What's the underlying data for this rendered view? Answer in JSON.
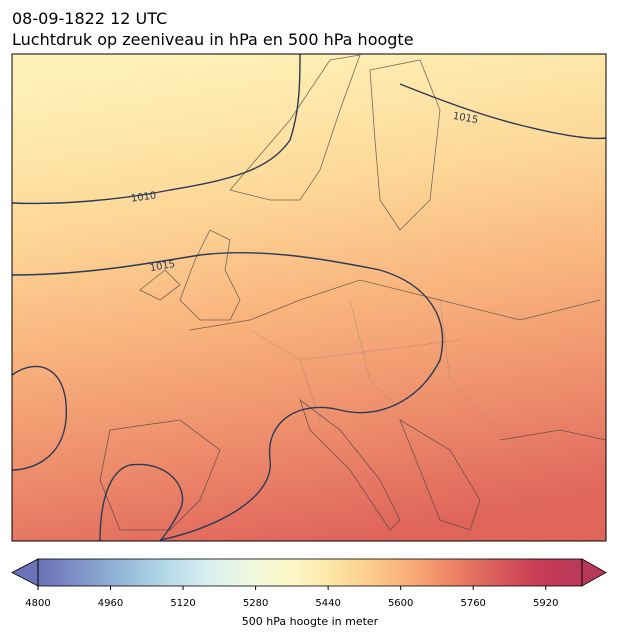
{
  "header": {
    "title_lines": [
      "08-09-1822 12 UTC",
      "Luchtdruk op zeeniveau in hPa en 500 hPa hoogte"
    ]
  },
  "map": {
    "isobar_labels": [
      "1010",
      "1015",
      "1015"
    ]
  },
  "colorbar": {
    "range": [
      4800,
      6000
    ],
    "ticks": [
      4800,
      4960,
      5120,
      5280,
      5440,
      5600,
      5760,
      5920
    ],
    "label": "500 hPa hoogte in meter",
    "colors": [
      "#6a72b8",
      "#7f93c6",
      "#94b8d8",
      "#b3d8e8",
      "#d6eef2",
      "#eef8e0",
      "#fdf8c8",
      "#fde6a6",
      "#fdcb8a",
      "#f8a876",
      "#ec8064",
      "#d85a5a",
      "#c63c56",
      "#b8385a"
    ]
  }
}
